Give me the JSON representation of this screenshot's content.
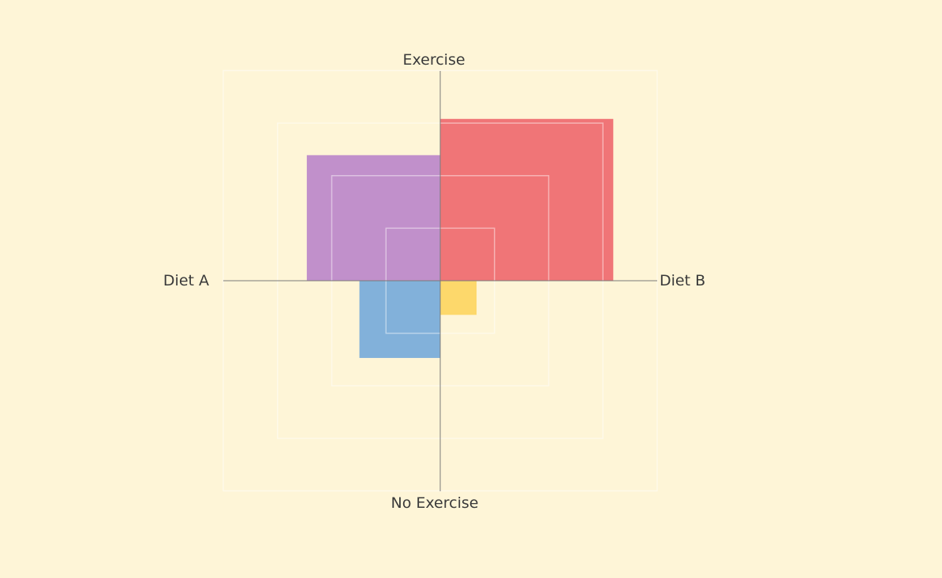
{
  "chart_data": {
    "type": "quadrant-area",
    "axes": {
      "top": "Exercise",
      "bottom": "No Exercise",
      "left": "Diet A",
      "right": "Diet B"
    },
    "range": [
      0,
      4
    ],
    "grid_levels": [
      1,
      2,
      3,
      4
    ],
    "grid": true,
    "quadrants": [
      {
        "label": "Diet A + Exercise",
        "horizontal": 2.46,
        "vertical": 2.39,
        "color": "#c190cb"
      },
      {
        "label": "Diet B + Exercise",
        "horizontal": 3.19,
        "vertical": 3.08,
        "color": "#f07577"
      },
      {
        "label": "Diet A + No Exercise",
        "horizontal": 1.49,
        "vertical": 1.47,
        "color": "#82b1da"
      },
      {
        "label": "Diet B + No Exercise",
        "horizontal": 0.67,
        "vertical": 0.65,
        "color": "#fdd86b"
      }
    ]
  }
}
